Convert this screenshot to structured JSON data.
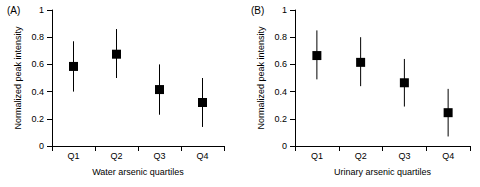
{
  "chart_data": [
    {
      "type": "scatter",
      "title": "(A)",
      "x_label": "Water arsenic quartiles",
      "y_label": "Normalized peak intensity",
      "categories": [
        "Q1",
        "Q2",
        "Q3",
        "Q4"
      ],
      "values": [
        0.585,
        0.675,
        0.415,
        0.32
      ],
      "ci_low": [
        0.4,
        0.5,
        0.23,
        0.14
      ],
      "ci_high": [
        0.77,
        0.86,
        0.6,
        0.5
      ],
      "color": "#000000",
      "marker": "square",
      "ylim": [
        0,
        1
      ],
      "yticks": [
        0,
        0.2,
        0.4,
        0.6,
        0.8,
        1
      ],
      "grid": false
    },
    {
      "type": "scatter",
      "title": "(B)",
      "x_label": "Urinary arsenic quartiles",
      "y_label": "Normalized peak intensity",
      "categories": [
        "Q1",
        "Q2",
        "Q3",
        "Q4"
      ],
      "values": [
        0.665,
        0.615,
        0.465,
        0.245
      ],
      "ci_low": [
        0.49,
        0.44,
        0.29,
        0.07
      ],
      "ci_high": [
        0.85,
        0.8,
        0.64,
        0.42
      ],
      "color": "#000000",
      "marker": "square",
      "ylim": [
        0,
        1
      ],
      "yticks": [
        0,
        0.2,
        0.4,
        0.6,
        0.8,
        1
      ],
      "grid": false
    }
  ]
}
